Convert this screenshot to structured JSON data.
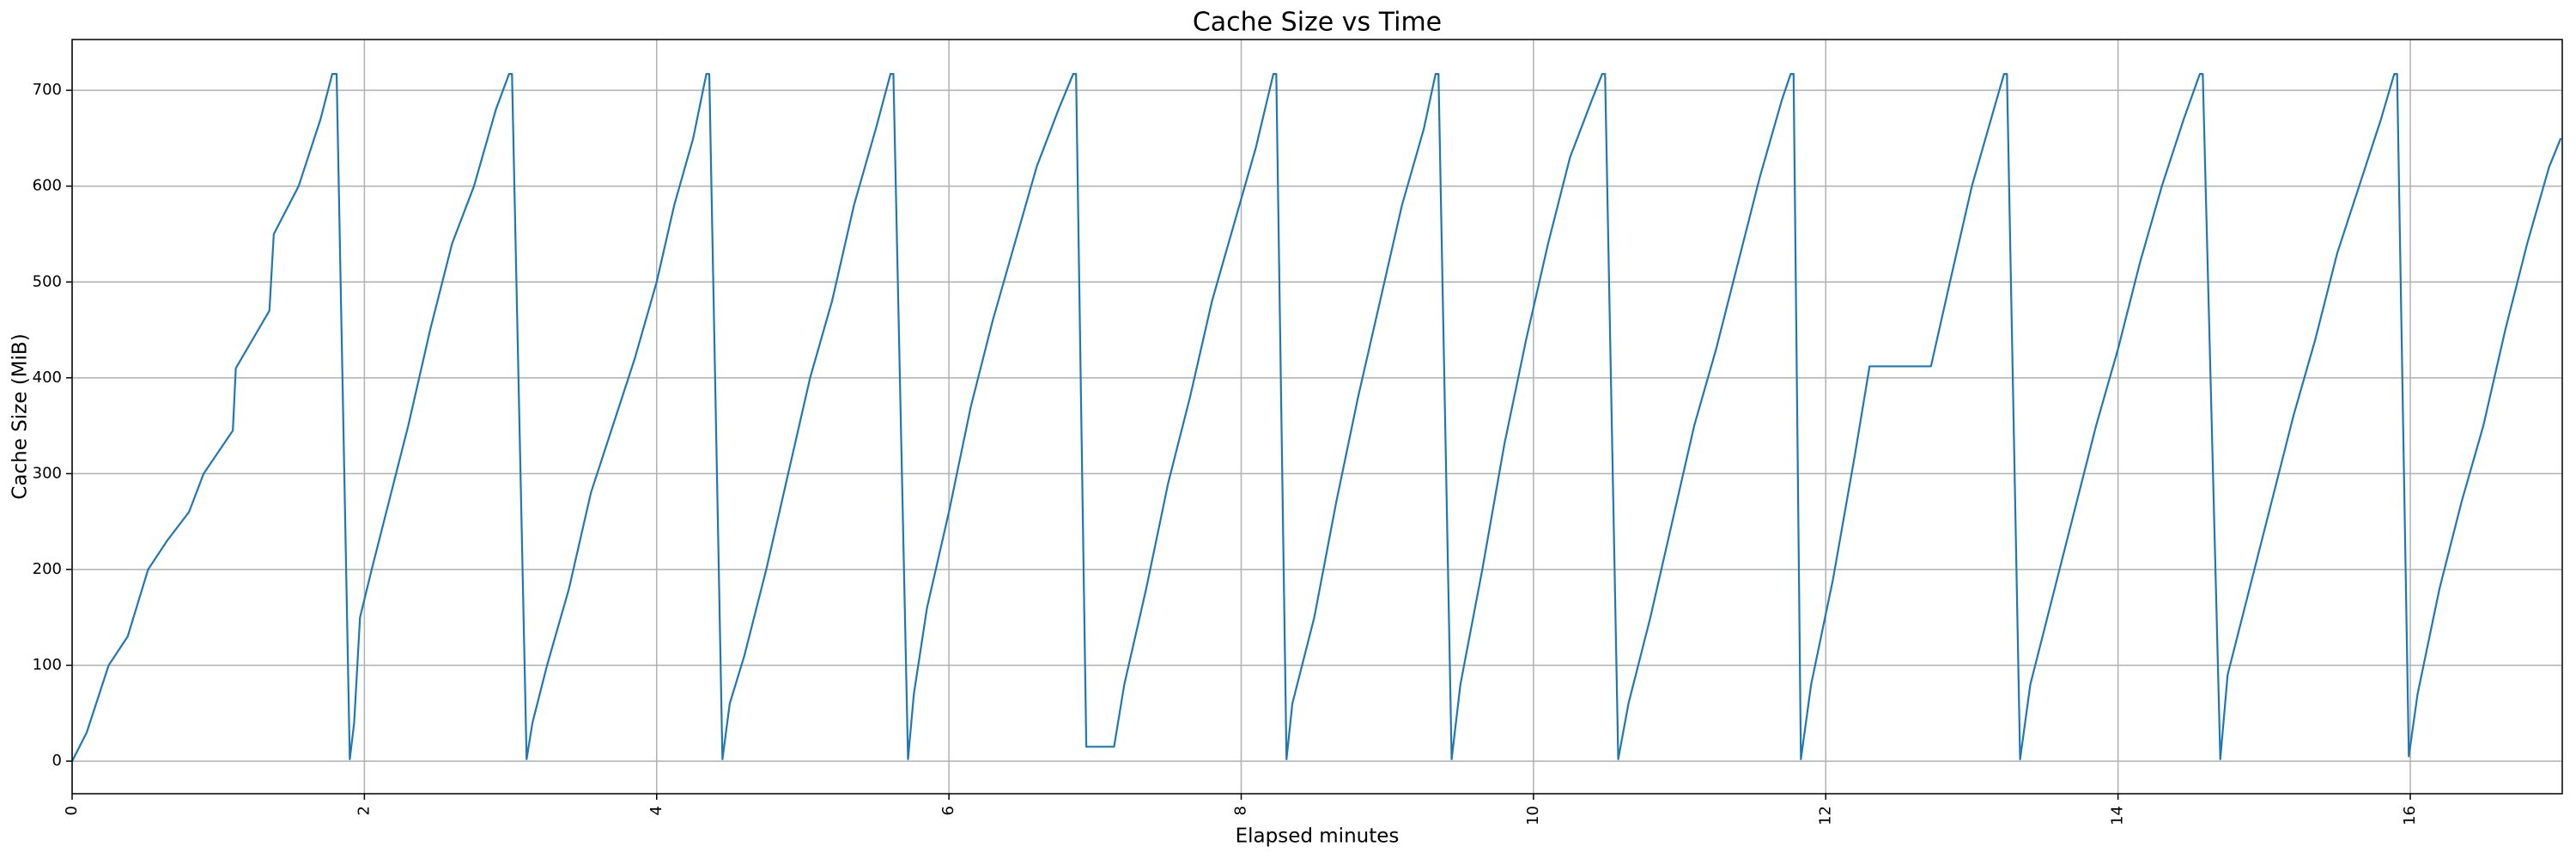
{
  "chart_data": {
    "type": "line",
    "title": "Cache Size vs Time",
    "xlabel": "Elapsed minutes",
    "ylabel": "Cache Size (MiB)",
    "x": [
      0,
      0.1,
      0.25,
      0.38,
      0.52,
      0.65,
      0.8,
      0.9,
      1.1,
      1.12,
      1.35,
      1.38,
      1.55,
      1.7,
      1.78,
      1.81,
      1.9,
      1.93,
      1.97,
      2.05,
      2.15,
      2.3,
      2.45,
      2.6,
      2.75,
      2.9,
      2.99,
      3.01,
      3.11,
      3.15,
      3.25,
      3.4,
      3.55,
      3.7,
      3.85,
      4.0,
      4.12,
      4.25,
      4.34,
      4.36,
      4.45,
      4.5,
      4.6,
      4.75,
      4.9,
      5.05,
      5.2,
      5.35,
      5.5,
      5.6,
      5.62,
      5.72,
      5.76,
      5.85,
      6.0,
      6.15,
      6.3,
      6.45,
      6.6,
      6.75,
      6.85,
      6.87,
      6.94,
      7.13,
      7.2,
      7.35,
      7.5,
      7.65,
      7.8,
      7.95,
      8.1,
      8.22,
      8.24,
      8.31,
      8.35,
      8.5,
      8.65,
      8.8,
      8.95,
      9.1,
      9.25,
      9.33,
      9.35,
      9.44,
      9.5,
      9.65,
      9.8,
      9.95,
      10.1,
      10.25,
      10.4,
      10.47,
      10.49,
      10.58,
      10.65,
      10.8,
      10.95,
      11.1,
      11.25,
      11.4,
      11.55,
      11.7,
      11.76,
      11.78,
      11.83,
      11.9,
      12.05,
      12.2,
      12.3,
      12.72,
      12.85,
      13.0,
      13.15,
      13.22,
      13.24,
      13.33,
      13.4,
      13.55,
      13.7,
      13.85,
      14.0,
      14.15,
      14.3,
      14.45,
      14.56,
      14.58,
      14.7,
      14.75,
      14.9,
      15.05,
      15.2,
      15.35,
      15.5,
      15.65,
      15.8,
      15.89,
      15.91,
      15.99,
      16.05,
      16.2,
      16.35,
      16.5,
      16.65,
      16.8,
      16.95,
      17.03
    ],
    "series": [
      {
        "name": "Cache Size",
        "color": "#1f77b4",
        "values": [
          0,
          30,
          100,
          130,
          200,
          230,
          260,
          300,
          345,
          410,
          470,
          550,
          600,
          670,
          717,
          717,
          2,
          40,
          150,
          200,
          260,
          350,
          450,
          540,
          600,
          680,
          717,
          717,
          2,
          40,
          100,
          180,
          280,
          350,
          420,
          500,
          580,
          650,
          717,
          717,
          2,
          60,
          110,
          200,
          300,
          400,
          480,
          580,
          660,
          717,
          717,
          2,
          70,
          160,
          260,
          370,
          460,
          540,
          620,
          680,
          717,
          717,
          15,
          15,
          80,
          180,
          290,
          380,
          480,
          560,
          640,
          717,
          717,
          2,
          60,
          150,
          270,
          380,
          480,
          580,
          660,
          717,
          717,
          2,
          80,
          200,
          330,
          440,
          540,
          630,
          690,
          717,
          717,
          2,
          60,
          150,
          250,
          350,
          430,
          520,
          610,
          690,
          717,
          717,
          2,
          80,
          190,
          320,
          412,
          412,
          500,
          600,
          680,
          717,
          717,
          2,
          80,
          170,
          260,
          350,
          430,
          520,
          600,
          670,
          717,
          717,
          2,
          90,
          180,
          270,
          360,
          440,
          530,
          600,
          670,
          717,
          717,
          5,
          70,
          180,
          270,
          350,
          450,
          540,
          620,
          650
        ]
      }
    ],
    "xlim": [
      0,
      17.04
    ],
    "ylim": [
      -34,
      753
    ],
    "xticks": [
      0,
      2,
      4,
      6,
      8,
      10,
      12,
      14,
      16
    ],
    "yticks": [
      0,
      100,
      200,
      300,
      400,
      500,
      600,
      700
    ],
    "grid": true
  }
}
